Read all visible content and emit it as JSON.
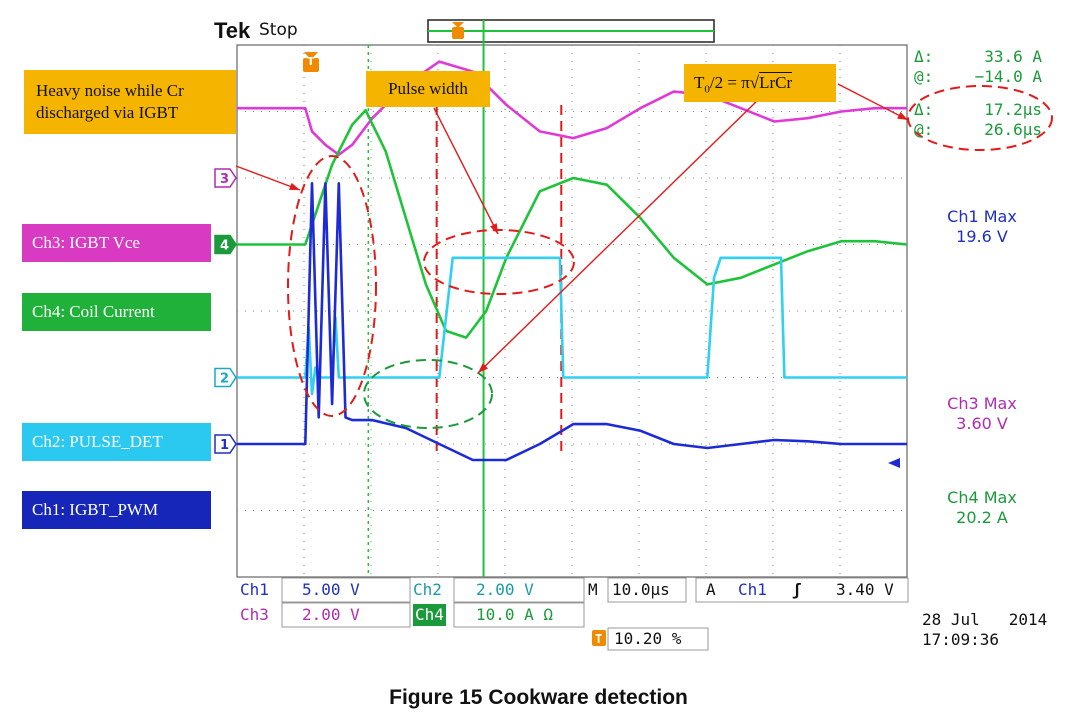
{
  "header": {
    "brand": "Tek",
    "status": "Stop",
    "trigger_marker": "T"
  },
  "cursor_readouts": {
    "amplitude": {
      "delta": "Δ:",
      "delta_value": "33.6 A",
      "at": "@:",
      "at_value": "−14.0 A",
      "color": "#1a9a3a"
    },
    "time": {
      "delta": "Δ:",
      "delta_value": "17.2µs",
      "at": "@:",
      "at_value": "26.6µs",
      "color": "#1a9a3a"
    }
  },
  "measurements": [
    {
      "label": "Ch1 Max",
      "value": "19.6 V",
      "color": "#1f2fbf"
    },
    {
      "label": "Ch3 Max",
      "value": "3.60 V",
      "color": "#b02cb0"
    },
    {
      "label": "Ch4 Max",
      "value": "20.2 A",
      "color": "#1a9a3a"
    }
  ],
  "channel_labels": [
    {
      "text": "Ch3: IGBT Vce",
      "marker": "3",
      "color": "#d83bc2"
    },
    {
      "text": "Ch4: Coil Current",
      "marker": "4",
      "color": "#1fb13a"
    },
    {
      "text": "Ch2: PULSE_DET",
      "marker": "2",
      "color": "#2bc8ef"
    },
    {
      "text": "Ch1: IGBT_PWM",
      "marker": "1",
      "color": "#1626b8"
    }
  ],
  "annotations": {
    "noise": [
      "Heavy noise while Cr",
      "discharged via IGBT"
    ],
    "pulse_width": "Pulse width",
    "formula_lhs": "T",
    "formula_sub": "0",
    "formula_mid": "/2 = ",
    "formula_pi": "π√",
    "formula_rad": "LrCr"
  },
  "settings": {
    "ch1_name": "Ch1",
    "ch1_scale": "5.00 V",
    "ch2_name": "Ch2",
    "ch2_scale": "2.00 V",
    "timebase_prefix": "M",
    "timebase": "10.0µs",
    "trigger_prefix": "A",
    "trigger_source": "Ch1",
    "trigger_slope": "ʃ",
    "trigger_level": "3.40 V",
    "ch3_name": "Ch3",
    "ch3_scale": "2.00 V",
    "ch4_name": "Ch4",
    "ch4_scale": "10.0 A Ω",
    "trigger_position_marker": "T",
    "trigger_position": "10.20 %"
  },
  "datetime": {
    "date": "28 Jul   2014",
    "time": "17:09:36"
  },
  "caption": "Figure 15 Cookware detection",
  "chart_data": {
    "type": "line",
    "time_per_division_us": 10,
    "x_divisions": 10,
    "y_divisions": 8,
    "x_unit": "µs",
    "x_range": [
      -10.2,
      89.8
    ],
    "series": [
      {
        "name": "Ch3: IGBT Vce",
        "color": "#e03ad6",
        "x": [
          -10.2,
          0,
          1,
          3,
          5,
          7,
          10,
          15,
          20,
          25,
          30,
          35,
          40,
          45,
          50,
          55,
          60,
          65,
          70,
          75,
          80,
          85,
          89.8
        ],
        "y": [
          2.1,
          2.1,
          1.4,
          1.0,
          0.7,
          1.0,
          1.8,
          2.8,
          3.5,
          3.2,
          2.2,
          1.4,
          1.2,
          1.5,
          2.1,
          2.6,
          2.5,
          2.1,
          1.7,
          1.8,
          2.0,
          2.1,
          2.1
        ]
      },
      {
        "name": "Ch4: Coil Current",
        "color": "#1fc33a",
        "x": [
          -10.2,
          0,
          2,
          4,
          7,
          9,
          12,
          15,
          18,
          21,
          24,
          27,
          30,
          35,
          40,
          45,
          50,
          55,
          60,
          65,
          70,
          75,
          80,
          85,
          89.8
        ],
        "y": [
          0,
          0,
          6,
          12,
          18,
          20.2,
          14,
          4,
          -6,
          -13,
          -14,
          -10,
          -2,
          8,
          10,
          9,
          4,
          -2,
          -6,
          -5,
          -3,
          -1,
          0.5,
          0.5,
          0
        ]
      },
      {
        "name": "Ch2: PULSE_DET",
        "color": "#2fd0f0",
        "x": [
          -10.2,
          0,
          0.5,
          1,
          1.5,
          2,
          2.5,
          4,
          4.5,
          5,
          19.5,
          20,
          22,
          24,
          38,
          38.5,
          59.5,
          60,
          61,
          62,
          71,
          71.5,
          89.8
        ],
        "y": [
          0,
          0,
          1.5,
          -0.5,
          0.3,
          0,
          0,
          0,
          1.8,
          0,
          0,
          0,
          3.6,
          3.6,
          3.6,
          0,
          0,
          0,
          3.0,
          3.6,
          3.6,
          0,
          0
        ]
      },
      {
        "name": "Ch1: IGBT_PWM",
        "color": "#1d2bd6",
        "x": [
          -10.2,
          0,
          1,
          2,
          3,
          4,
          5,
          6,
          7,
          10,
          15,
          20,
          25,
          30,
          35,
          40,
          45,
          50,
          55,
          60,
          65,
          70,
          75,
          80,
          85,
          89.8
        ],
        "y": [
          0,
          0,
          19.6,
          2,
          19.6,
          3,
          19.6,
          2,
          1.8,
          1.8,
          1.2,
          0,
          -1.2,
          -1.2,
          0,
          1.5,
          1.5,
          1,
          0,
          -0.3,
          0,
          0.3,
          0.2,
          0,
          0,
          0
        ]
      }
    ],
    "ch_scale": {
      "Ch1": 5,
      "Ch2": 2,
      "Ch3": 2,
      "Ch4": 10
    },
    "ch_offset_div": {
      "Ch1": -2.0,
      "Ch2": -1.0,
      "Ch3": 2.0,
      "Ch4": 1.0
    },
    "cursors": {
      "t1_us": 9.4,
      "t2_us": 26.6,
      "pulse_start_us": 19.6,
      "pulse_end_us": 38.2
    }
  }
}
